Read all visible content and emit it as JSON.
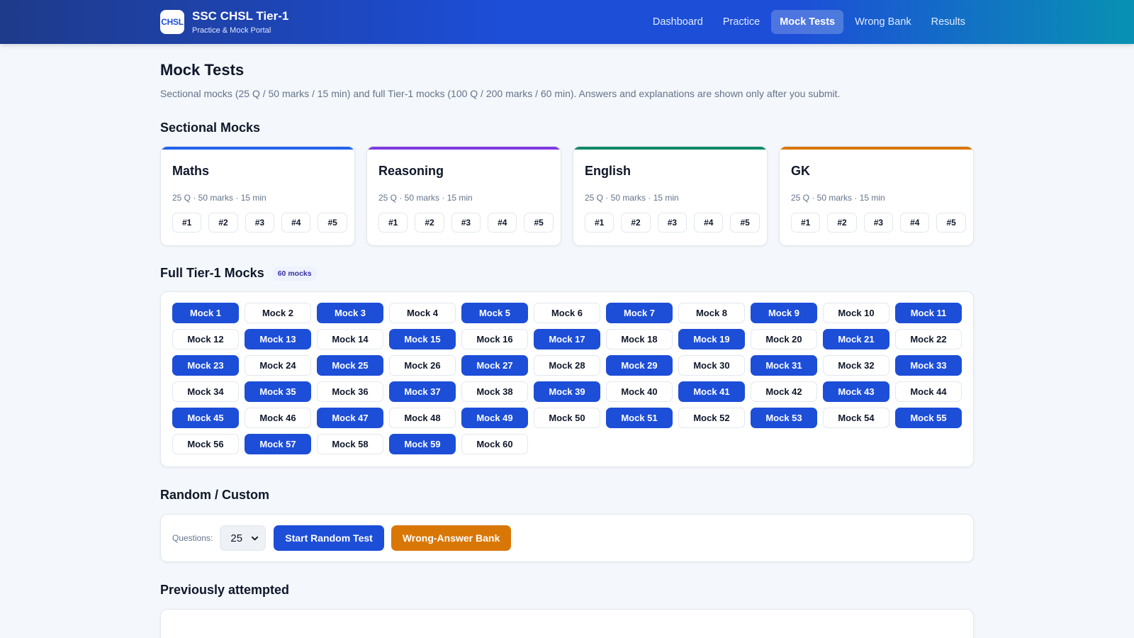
{
  "header": {
    "logo_text": "CHSL",
    "title": "SSC CHSL Tier-1",
    "subtitle": "Practice & Mock Portal",
    "nav": [
      {
        "label": "Dashboard",
        "active": false
      },
      {
        "label": "Practice",
        "active": false
      },
      {
        "label": "Mock Tests",
        "active": true
      },
      {
        "label": "Wrong Bank",
        "active": false
      },
      {
        "label": "Results",
        "active": false
      }
    ]
  },
  "page": {
    "title": "Mock Tests",
    "description": "Sectional mocks (25 Q / 50 marks / 15 min) and full Tier-1 mocks (100 Q / 200 marks / 60 min). Answers and explanations are shown only after you submit."
  },
  "sectional": {
    "heading": "Sectional Mocks",
    "cards": [
      {
        "name": "Maths",
        "meta": "25 Q · 50 marks · 15 min",
        "accent": "#2563eb",
        "chips": [
          "#1",
          "#2",
          "#3",
          "#4",
          "#5"
        ]
      },
      {
        "name": "Reasoning",
        "meta": "25 Q · 50 marks · 15 min",
        "accent": "#7e3ae0",
        "chips": [
          "#1",
          "#2",
          "#3",
          "#4",
          "#5"
        ]
      },
      {
        "name": "English",
        "meta": "25 Q · 50 marks · 15 min",
        "accent": "#0f8a67",
        "chips": [
          "#1",
          "#2",
          "#3",
          "#4",
          "#5"
        ]
      },
      {
        "name": "GK",
        "meta": "25 Q · 50 marks · 15 min",
        "accent": "#d97706",
        "chips": [
          "#1",
          "#2",
          "#3",
          "#4",
          "#5"
        ]
      }
    ]
  },
  "full": {
    "heading": "Full Tier-1 Mocks",
    "badge": "60 mocks",
    "mocks": [
      {
        "label": "Mock 1",
        "filled": true
      },
      {
        "label": "Mock 2",
        "filled": false
      },
      {
        "label": "Mock 3",
        "filled": true
      },
      {
        "label": "Mock 4",
        "filled": false
      },
      {
        "label": "Mock 5",
        "filled": true
      },
      {
        "label": "Mock 6",
        "filled": false
      },
      {
        "label": "Mock 7",
        "filled": true
      },
      {
        "label": "Mock 8",
        "filled": false
      },
      {
        "label": "Mock 9",
        "filled": true
      },
      {
        "label": "Mock 10",
        "filled": false
      },
      {
        "label": "Mock 11",
        "filled": true
      },
      {
        "label": "Mock 12",
        "filled": false
      },
      {
        "label": "Mock 13",
        "filled": true
      },
      {
        "label": "Mock 14",
        "filled": false
      },
      {
        "label": "Mock 15",
        "filled": true
      },
      {
        "label": "Mock 16",
        "filled": false
      },
      {
        "label": "Mock 17",
        "filled": true
      },
      {
        "label": "Mock 18",
        "filled": false
      },
      {
        "label": "Mock 19",
        "filled": true
      },
      {
        "label": "Mock 20",
        "filled": false
      },
      {
        "label": "Mock 21",
        "filled": true
      },
      {
        "label": "Mock 22",
        "filled": false
      },
      {
        "label": "Mock 23",
        "filled": true
      },
      {
        "label": "Mock 24",
        "filled": false
      },
      {
        "label": "Mock 25",
        "filled": true
      },
      {
        "label": "Mock 26",
        "filled": false
      },
      {
        "label": "Mock 27",
        "filled": true
      },
      {
        "label": "Mock 28",
        "filled": false
      },
      {
        "label": "Mock 29",
        "filled": true
      },
      {
        "label": "Mock 30",
        "filled": false
      },
      {
        "label": "Mock 31",
        "filled": true
      },
      {
        "label": "Mock 32",
        "filled": false
      },
      {
        "label": "Mock 33",
        "filled": true
      },
      {
        "label": "Mock 34",
        "filled": false
      },
      {
        "label": "Mock 35",
        "filled": true
      },
      {
        "label": "Mock 36",
        "filled": false
      },
      {
        "label": "Mock 37",
        "filled": true
      },
      {
        "label": "Mock 38",
        "filled": false
      },
      {
        "label": "Mock 39",
        "filled": true
      },
      {
        "label": "Mock 40",
        "filled": false
      },
      {
        "label": "Mock 41",
        "filled": true
      },
      {
        "label": "Mock 42",
        "filled": false
      },
      {
        "label": "Mock 43",
        "filled": true
      },
      {
        "label": "Mock 44",
        "filled": false
      },
      {
        "label": "Mock 45",
        "filled": true
      },
      {
        "label": "Mock 46",
        "filled": false
      },
      {
        "label": "Mock 47",
        "filled": true
      },
      {
        "label": "Mock 48",
        "filled": false
      },
      {
        "label": "Mock 49",
        "filled": true
      },
      {
        "label": "Mock 50",
        "filled": false
      },
      {
        "label": "Mock 51",
        "filled": true
      },
      {
        "label": "Mock 52",
        "filled": false
      },
      {
        "label": "Mock 53",
        "filled": true
      },
      {
        "label": "Mock 54",
        "filled": false
      },
      {
        "label": "Mock 55",
        "filled": true
      },
      {
        "label": "Mock 56",
        "filled": false
      },
      {
        "label": "Mock 57",
        "filled": true
      },
      {
        "label": "Mock 58",
        "filled": false
      },
      {
        "label": "Mock 59",
        "filled": true
      },
      {
        "label": "Mock 60",
        "filled": false
      }
    ]
  },
  "random": {
    "heading": "Random / Custom",
    "questions_label": "Questions:",
    "questions_value": "25",
    "start_button": "Start Random Test",
    "wrong_bank_button": "Wrong-Answer Bank",
    "icons": {
      "select": "chevron-down-icon"
    }
  },
  "previous": {
    "heading": "Previously attempted"
  },
  "colors": {
    "primary": "#1d4ed8",
    "orange": "#d97706",
    "background": "#f4f7fb"
  }
}
